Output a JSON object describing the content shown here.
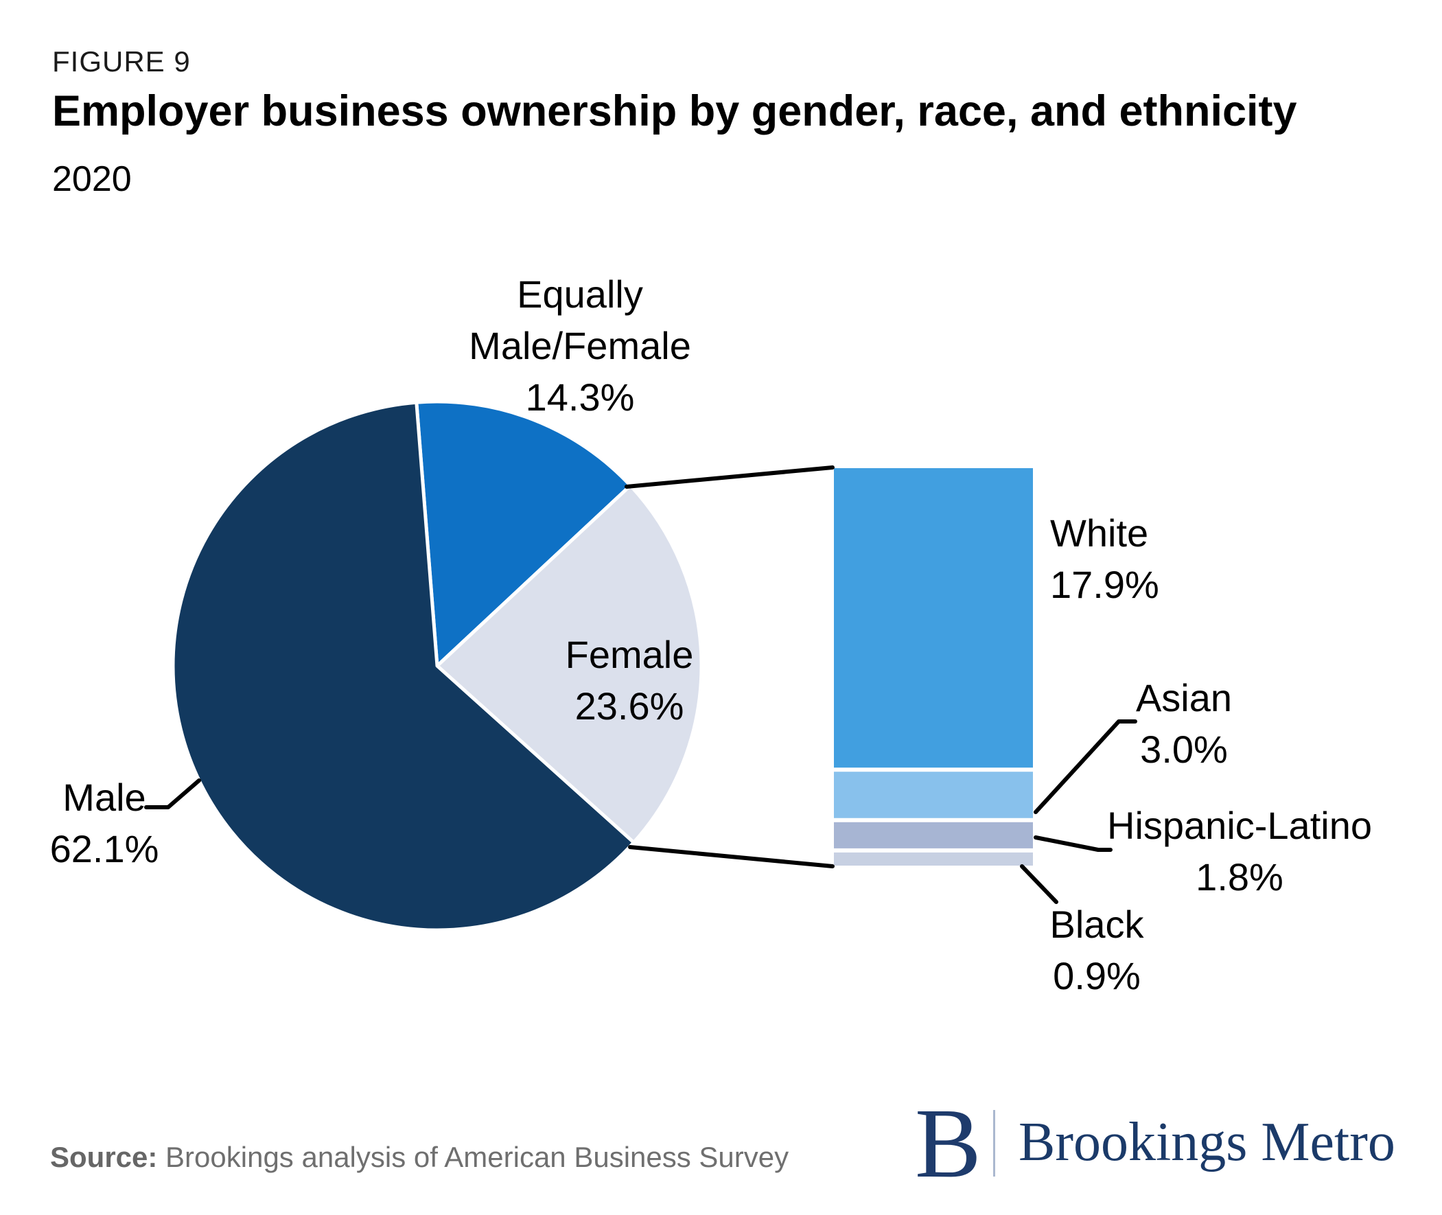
{
  "figure": {
    "label": "FIGURE 9",
    "title": "Employer business ownership by gender, race, and ethnicity",
    "subtitle": "2020"
  },
  "source": {
    "prefix": "Source:",
    "text": " Brookings analysis of American Business Survey"
  },
  "logo": {
    "monogram": "B",
    "wordmark": "Brookings Metro",
    "navy": "#1E3B6C"
  },
  "chart_data": [
    {
      "type": "pie",
      "categories": [
        "Equally Male/Female",
        "Female",
        "Male"
      ],
      "values": [
        14.3,
        23.6,
        62.1
      ],
      "unit": "%",
      "colors": [
        "#0E71C5",
        "#DBE0EC",
        "#12395F"
      ],
      "slice_ids": [
        "equally-male-female",
        "female",
        "male"
      ],
      "start_angle_deg": -4.5,
      "separator_color": "#ffffff",
      "labels": {
        "equally": {
          "line1": "Equally",
          "line2": "Male/Female",
          "value": "14.3%"
        },
        "female": {
          "name": "Female",
          "value": "23.6%"
        },
        "male": {
          "name": "Male",
          "value": "62.1%"
        }
      }
    },
    {
      "type": "bar",
      "categories": [
        "White",
        "Asian",
        "Hispanic-Latino",
        "Black"
      ],
      "values": [
        17.9,
        3.0,
        1.8,
        0.9
      ],
      "unit": "%",
      "colors": [
        "#419FE0",
        "#88C1EC",
        "#A7B5D3",
        "#C7D0E2"
      ],
      "segment_ids": [
        "white",
        "asian",
        "hispanic-latino",
        "black"
      ],
      "separator_color": "#ffffff",
      "note": "breakdown of the Female slice",
      "labels": {
        "white": {
          "name": "White",
          "value": "17.9%"
        },
        "asian": {
          "name": "Asian",
          "value": "3.0%"
        },
        "hispanic": {
          "name": "Hispanic-Latino",
          "value": "1.8%"
        },
        "black": {
          "name": "Black",
          "value": "0.9%"
        }
      }
    }
  ]
}
